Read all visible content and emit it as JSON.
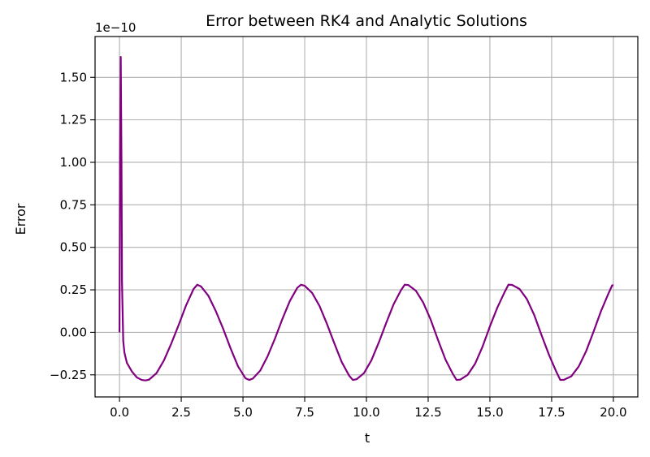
{
  "chart_data": {
    "type": "line",
    "title": "Error between RK4 and Analytic Solutions",
    "xlabel": "t",
    "ylabel": "Error",
    "y_multiplier_label": "1e−10",
    "xlim": [
      -0.99,
      20.99
    ],
    "ylim": [
      -0.38,
      1.74
    ],
    "y_scale_exponent": -10,
    "grid": true,
    "line_color": "#800080",
    "grid_color": "#b0b0b0",
    "x_ticks": [
      0.0,
      2.5,
      5.0,
      7.5,
      10.0,
      12.5,
      15.0,
      17.5,
      20.0
    ],
    "x_tick_labels": [
      "0.0",
      "2.5",
      "5.0",
      "7.5",
      "10.0",
      "12.5",
      "15.0",
      "17.5",
      "20.0"
    ],
    "y_ticks": [
      -0.25,
      0.0,
      0.25,
      0.5,
      0.75,
      1.0,
      1.25,
      1.5
    ],
    "y_tick_labels": [
      "−0.25",
      "0.00",
      "0.25",
      "0.50",
      "0.75",
      "1.00",
      "1.25",
      "1.50"
    ],
    "series": [
      {
        "x": [
          0,
          0.02,
          0.05,
          0.08,
          0.1,
          0.15,
          0.2,
          0.3,
          0.5,
          0.7,
          0.9,
          1.05,
          1.2,
          1.5,
          1.8,
          2.1,
          2.4,
          2.7,
          3.0,
          3.15,
          3.3,
          3.6,
          3.9,
          4.2,
          4.5,
          4.8,
          5.1,
          5.25,
          5.4,
          5.7,
          6.0,
          6.3,
          6.6,
          6.9,
          7.2,
          7.35,
          7.5,
          7.8,
          8.1,
          8.4,
          8.7,
          9.0,
          9.3,
          9.45,
          9.6,
          9.9,
          10.2,
          10.5,
          10.8,
          11.1,
          11.4,
          11.55,
          11.7,
          12.0,
          12.3,
          12.6,
          12.9,
          13.2,
          13.5,
          13.65,
          13.8,
          14.1,
          14.4,
          14.7,
          15.0,
          15.3,
          15.6,
          15.75,
          15.9,
          16.2,
          16.5,
          16.8,
          17.1,
          17.4,
          17.7,
          17.85,
          18.0,
          18.3,
          18.6,
          18.9,
          19.2,
          19.5,
          19.8,
          19.95,
          20.0
        ],
        "y": [
          0.0,
          1.0,
          1.62,
          1.0,
          0.3,
          -0.05,
          -0.12,
          -0.18,
          -0.23,
          -0.265,
          -0.28,
          -0.283,
          -0.278,
          -0.24,
          -0.165,
          -0.065,
          0.045,
          0.16,
          0.255,
          0.28,
          0.27,
          0.215,
          0.125,
          0.02,
          -0.095,
          -0.2,
          -0.27,
          -0.28,
          -0.272,
          -0.225,
          -0.14,
          -0.035,
          0.08,
          0.185,
          0.262,
          0.28,
          0.274,
          0.232,
          0.155,
          0.05,
          -0.065,
          -0.175,
          -0.255,
          -0.28,
          -0.276,
          -0.24,
          -0.165,
          -0.06,
          0.055,
          0.165,
          0.248,
          0.28,
          0.278,
          0.245,
          0.175,
          0.075,
          -0.045,
          -0.16,
          -0.245,
          -0.28,
          -0.278,
          -0.25,
          -0.185,
          -0.085,
          0.035,
          0.145,
          0.238,
          0.28,
          0.279,
          0.255,
          0.195,
          0.1,
          -0.02,
          -0.135,
          -0.235,
          -0.28,
          -0.279,
          -0.258,
          -0.2,
          -0.11,
          0.005,
          0.125,
          0.228,
          0.276,
          0.278
        ]
      }
    ]
  }
}
